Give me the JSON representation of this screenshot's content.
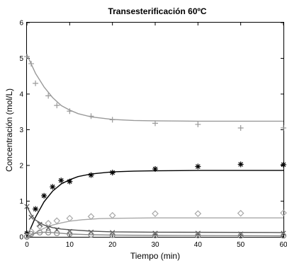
{
  "chart_data": {
    "type": "scatter",
    "title": "Transesterificación 60ºC",
    "xlabel": "Tiempo (min)",
    "ylabel": "Concentración (mol/L)",
    "xlim": [
      0,
      60
    ],
    "ylim": [
      0,
      6
    ],
    "xticks": [
      "0",
      "10",
      "20",
      "30",
      "40",
      "50",
      "60"
    ],
    "yticks": [
      "0",
      "1",
      "2",
      "3",
      "4",
      "5",
      "6"
    ],
    "grid": false,
    "series": [
      {
        "marker": "plus",
        "color": "#9a9a9a",
        "points": [
          [
            0,
            5.05
          ],
          [
            1,
            4.85
          ],
          [
            2,
            4.3
          ],
          [
            5,
            3.95
          ],
          [
            7,
            3.68
          ],
          [
            10,
            3.52
          ],
          [
            15,
            3.38
          ],
          [
            20,
            3.28
          ],
          [
            30,
            3.18
          ],
          [
            40,
            3.15
          ],
          [
            50,
            3.05
          ],
          [
            60,
            3.05
          ]
        ],
        "fit": [
          [
            0,
            5.1
          ],
          [
            2,
            4.58
          ],
          [
            4,
            4.2
          ],
          [
            6,
            3.9
          ],
          [
            8,
            3.68
          ],
          [
            10,
            3.55
          ],
          [
            12,
            3.45
          ],
          [
            15,
            3.36
          ],
          [
            20,
            3.29
          ],
          [
            25,
            3.26
          ],
          [
            30,
            3.25
          ],
          [
            40,
            3.24
          ],
          [
            60,
            3.24
          ]
        ]
      },
      {
        "marker": "asterisk",
        "color": "#000000",
        "points": [
          [
            0,
            0.1
          ],
          [
            2,
            0.78
          ],
          [
            4,
            1.15
          ],
          [
            6,
            1.4
          ],
          [
            8,
            1.58
          ],
          [
            10,
            1.55
          ],
          [
            15,
            1.73
          ],
          [
            20,
            1.8
          ],
          [
            30,
            1.9
          ],
          [
            40,
            1.97
          ],
          [
            50,
            2.03
          ],
          [
            60,
            2.02
          ]
        ],
        "fit": [
          [
            0,
            0.0
          ],
          [
            2,
            0.55
          ],
          [
            4,
            0.98
          ],
          [
            6,
            1.28
          ],
          [
            8,
            1.48
          ],
          [
            10,
            1.6
          ],
          [
            12,
            1.69
          ],
          [
            15,
            1.76
          ],
          [
            20,
            1.82
          ],
          [
            25,
            1.84
          ],
          [
            30,
            1.85
          ],
          [
            40,
            1.86
          ],
          [
            60,
            1.86
          ]
        ]
      },
      {
        "marker": "diamond",
        "color": "#a8a8a8",
        "points": [
          [
            0,
            0.02
          ],
          [
            1,
            0.15
          ],
          [
            3,
            0.3
          ],
          [
            5,
            0.38
          ],
          [
            7,
            0.45
          ],
          [
            10,
            0.52
          ],
          [
            15,
            0.57
          ],
          [
            20,
            0.6
          ],
          [
            30,
            0.65
          ],
          [
            40,
            0.65
          ],
          [
            50,
            0.66
          ],
          [
            60,
            0.67
          ]
        ],
        "fit": [
          [
            0,
            0.0
          ],
          [
            2,
            0.12
          ],
          [
            4,
            0.24
          ],
          [
            6,
            0.33
          ],
          [
            8,
            0.39
          ],
          [
            10,
            0.44
          ],
          [
            13,
            0.48
          ],
          [
            17,
            0.51
          ],
          [
            22,
            0.52
          ],
          [
            30,
            0.53
          ],
          [
            60,
            0.53
          ]
        ]
      },
      {
        "marker": "x",
        "color": "#555555",
        "points": [
          [
            0,
            0.85
          ],
          [
            1,
            0.55
          ],
          [
            3,
            0.35
          ],
          [
            5,
            0.25
          ],
          [
            7,
            0.2
          ],
          [
            10,
            0.15
          ],
          [
            15,
            0.13
          ],
          [
            20,
            0.12
          ],
          [
            30,
            0.1
          ],
          [
            40,
            0.1
          ],
          [
            50,
            0.08
          ],
          [
            60,
            0.1
          ]
        ],
        "fit": [
          [
            0,
            0.85
          ],
          [
            1,
            0.62
          ],
          [
            2,
            0.47
          ],
          [
            4,
            0.33
          ],
          [
            6,
            0.26
          ],
          [
            8,
            0.22
          ],
          [
            10,
            0.2
          ],
          [
            15,
            0.16
          ],
          [
            20,
            0.14
          ],
          [
            30,
            0.13
          ],
          [
            60,
            0.12
          ]
        ]
      },
      {
        "marker": "circle",
        "color": "#8a8a8a",
        "points": [
          [
            0,
            0.0
          ],
          [
            1,
            0.08
          ],
          [
            3,
            0.12
          ],
          [
            5,
            0.12
          ],
          [
            7,
            0.1
          ],
          [
            10,
            0.08
          ],
          [
            15,
            0.06
          ],
          [
            20,
            0.05
          ],
          [
            30,
            0.04
          ],
          [
            40,
            0.04
          ],
          [
            50,
            0.03
          ],
          [
            60,
            0.03
          ]
        ],
        "fit": [
          [
            0,
            0.0
          ],
          [
            2,
            0.1
          ],
          [
            4,
            0.13
          ],
          [
            6,
            0.12
          ],
          [
            8,
            0.1
          ],
          [
            10,
            0.08
          ],
          [
            15,
            0.06
          ],
          [
            20,
            0.05
          ],
          [
            30,
            0.04
          ],
          [
            60,
            0.03
          ]
        ]
      }
    ]
  }
}
